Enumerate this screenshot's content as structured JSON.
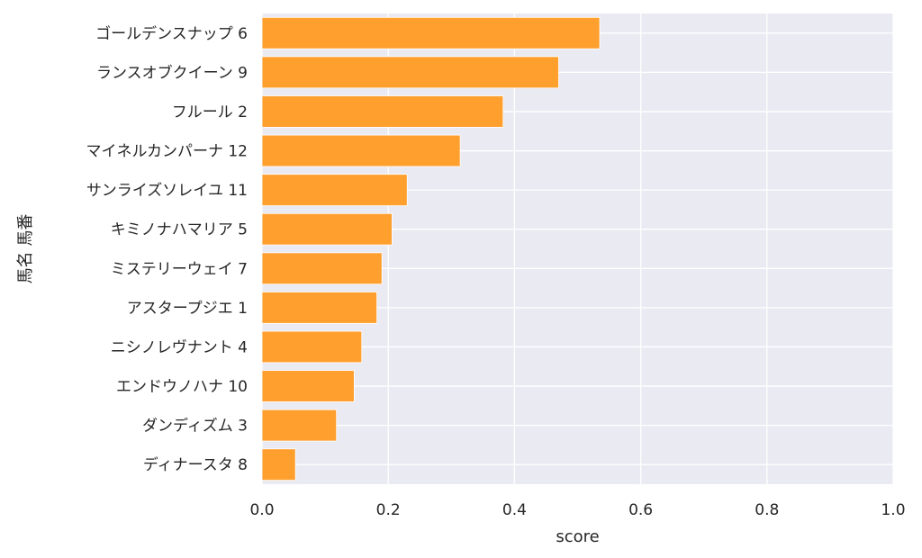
{
  "chart_data": {
    "type": "bar",
    "orientation": "horizontal",
    "categories": [
      "ゴールデンスナップ 6",
      "ランスオブクイーン 9",
      "フルール 2",
      "マイネルカンパーナ 12",
      "サンライズソレイユ 11",
      "キミノナハマリア 5",
      "ミステリーウェイ 7",
      "アスタープジエ 1",
      "ニシノレヴナント 4",
      "エンドウノハナ 10",
      "ダンディズム 3",
      "ディナースタ 8"
    ],
    "values": [
      0.535,
      0.47,
      0.382,
      0.314,
      0.23,
      0.206,
      0.19,
      0.182,
      0.158,
      0.146,
      0.118,
      0.053
    ],
    "xlabel": "score",
    "ylabel": "馬名 馬番",
    "xlim": [
      0.0,
      1.0
    ],
    "xticks": [
      "0.0",
      "0.2",
      "0.4",
      "0.6",
      "0.8",
      "1.0"
    ],
    "grid": true,
    "bar_color": "#ff9f2e",
    "background_color": "#eaeaf2",
    "grid_color": "#ffffff"
  }
}
